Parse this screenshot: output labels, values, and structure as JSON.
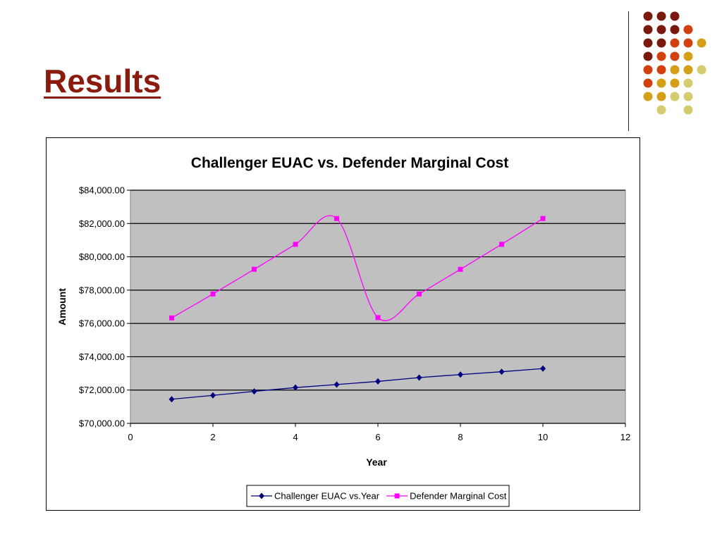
{
  "slide": {
    "title": "Results"
  },
  "decoration": {
    "dot_colors": {
      "dark_red": "#7a1a0f",
      "red_orange": "#d2400f",
      "gold": "#d4a017",
      "khaki": "#d4cc6e"
    }
  },
  "chart_data": {
    "type": "line",
    "title": "Challenger EUAC vs. Defender Marginal Cost",
    "xlabel": "Year",
    "ylabel": "Amount",
    "xlim": [
      0,
      12
    ],
    "ylim": [
      70000,
      84000
    ],
    "x_ticks": [
      "0",
      "2",
      "4",
      "6",
      "8",
      "10",
      "12"
    ],
    "y_ticks": [
      "$70,000.00",
      "$72,000.00",
      "$74,000.00",
      "$76,000.00",
      "$78,000.00",
      "$80,000.00",
      "$82,000.00",
      "$84,000.00"
    ],
    "grid": "horizontal",
    "plot_background": "#c0c0c0",
    "legend_position": "bottom",
    "series": [
      {
        "name": "Challenger EUAC vs.Year",
        "color": "#000080",
        "marker": "diamond",
        "smooth": false,
        "x": [
          1,
          2,
          3,
          4,
          5,
          6,
          7,
          8,
          9,
          10
        ],
        "y": [
          71450,
          71680,
          71920,
          72150,
          72330,
          72520,
          72750,
          72930,
          73100,
          73290
        ]
      },
      {
        "name": "Defender Marginal Cost",
        "color": "#ff00ff",
        "marker": "square",
        "smooth": true,
        "x": [
          1,
          2,
          3,
          4,
          5,
          6,
          7,
          8,
          9,
          10
        ],
        "y": [
          76330,
          77770,
          79250,
          80750,
          82300,
          76350,
          77770,
          79250,
          80750,
          82300
        ]
      }
    ]
  }
}
